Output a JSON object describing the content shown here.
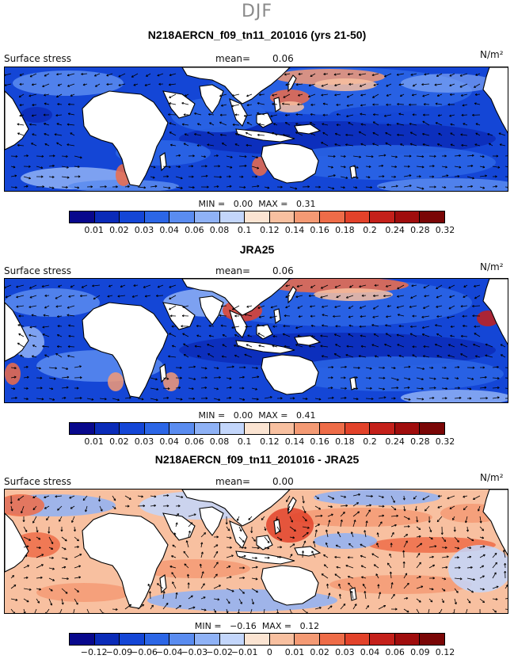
{
  "season": "DJF",
  "palette": [
    "#08088c",
    "#0a2bb8",
    "#1446d6",
    "#2c66e6",
    "#5a8cf0",
    "#8fb2f6",
    "#c3d6fb",
    "#fbe4d2",
    "#f8c0a0",
    "#f49a74",
    "#ee6c48",
    "#e2422a",
    "#c4201a",
    "#a00d0d",
    "#7a0606"
  ],
  "land_color": "#ffffff",
  "panels": [
    {
      "title": "N218AERCN_f09_tn11_201016 (yrs 21-50)",
      "variable": "Surface stress",
      "mean_label": "mean=",
      "mean_value": "0.06",
      "units": "N/m²",
      "min_label": "MIN =",
      "min_value": "0.00",
      "max_label": "MAX =",
      "max_value": "0.31",
      "ticks": [
        "0.01",
        "0.02",
        "0.03",
        "0.04",
        "0.06",
        "0.08",
        "0.1",
        "0.12",
        "0.14",
        "0.16",
        "0.18",
        "0.2",
        "0.24",
        "0.28",
        "0.32"
      ]
    },
    {
      "title": "JRA25",
      "variable": "Surface stress",
      "mean_label": "mean=",
      "mean_value": "0.06",
      "units": "N/m²",
      "min_label": "MIN =",
      "min_value": "0.00",
      "max_label": "MAX =",
      "max_value": "0.41",
      "ticks": [
        "0.01",
        "0.02",
        "0.03",
        "0.04",
        "0.06",
        "0.08",
        "0.1",
        "0.12",
        "0.14",
        "0.16",
        "0.18",
        "0.2",
        "0.24",
        "0.28",
        "0.32"
      ]
    },
    {
      "title": "N218AERCN_f09_tn11_201016 - JRA25",
      "variable": "Surface stress",
      "mean_label": "mean=",
      "mean_value": "0.00",
      "units": "N/m²",
      "min_label": "MIN =",
      "min_value": "−0.16",
      "max_label": "MAX =",
      "max_value": "0.12",
      "ticks": [
        "−0.12",
        "−0.09",
        "−0.06",
        "−0.04",
        "−0.03",
        "−0.02",
        "−0.01",
        "0",
        "0.01",
        "0.02",
        "0.03",
        "0.04",
        "0.06",
        "0.09",
        "0.12"
      ]
    }
  ]
}
